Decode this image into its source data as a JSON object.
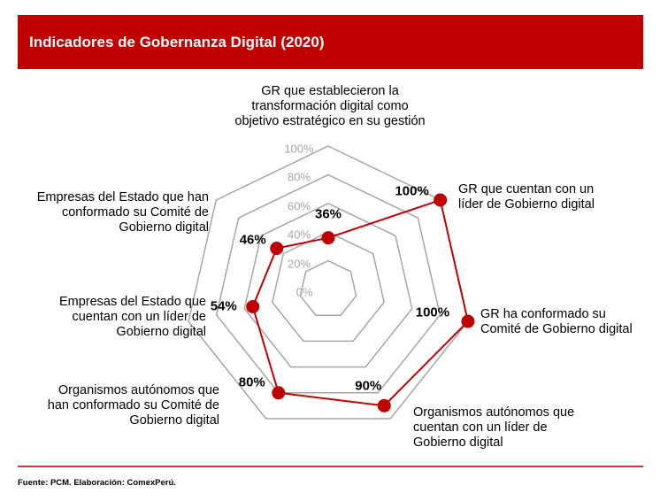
{
  "chart_data": {
    "type": "radar",
    "title": "Indicadores de Gobernanza Digital (2020)",
    "categories": [
      "GR que establecieron la transformación digital como objetivo estratégico en su gestión",
      "GR que cuentan con un líder de Gobierno digital",
      "GR ha conformado su Comité de Gobierno digital",
      "Organismos autónomos que cuentan con un líder de Gobierno digital",
      "Organismos autónomos que han conformado su Comité de Gobierno digital",
      "Empresas del Estado que cuentan con un líder de Gobierno digital",
      "Empresas del Estado que han conformado su Comité de Gobierno digital"
    ],
    "values": [
      36,
      100,
      100,
      90,
      80,
      54,
      46
    ],
    "data_labels": [
      "36%",
      "100%",
      "100%",
      "90%",
      "80%",
      "54%",
      "46%"
    ],
    "rlim": [
      0,
      100
    ],
    "ticks": [
      "0%",
      "20%",
      "40%",
      "60%",
      "80%",
      "100%"
    ],
    "series_color": "#c00000",
    "grid_color": "#a6a6a6"
  },
  "footer": {
    "source": "Fuente: PCM. Elaboración: ComexPerú."
  }
}
